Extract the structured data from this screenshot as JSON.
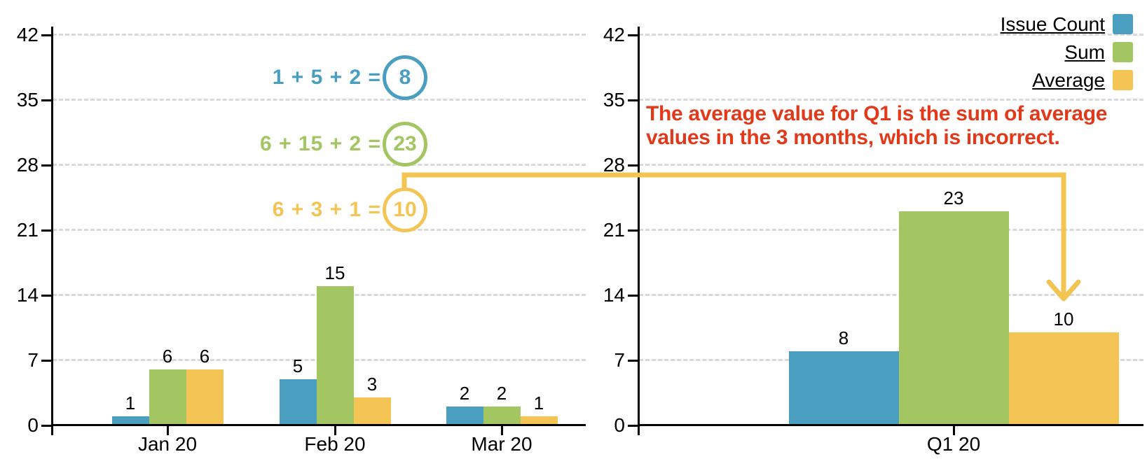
{
  "colors": {
    "issue_count": "#4A9EC0",
    "sum": "#A3C663",
    "average": "#F4C454",
    "arrow": "#F2C452",
    "note": "#E2391B",
    "gridline": "#d9d9d9",
    "axis": "#000000"
  },
  "legend": {
    "items": [
      {
        "label": "Issue Count",
        "color": "#4A9EC0"
      },
      {
        "label": "Sum",
        "color": "#A3C663"
      },
      {
        "label": "Average",
        "color": "#F4C454"
      }
    ]
  },
  "annotations": {
    "equations": [
      {
        "expr": "1 + 5 + 2 =",
        "result": "8",
        "color": "#4A9EC0"
      },
      {
        "expr": "6 + 15 + 2 =",
        "result": "23",
        "color": "#A3C663"
      },
      {
        "expr": "6 + 3 + 1 =",
        "result": "10",
        "color": "#F4C454"
      }
    ],
    "note": {
      "lines": [
        "The average value for Q1 is the sum of average",
        "values in the 3 months, which is incorrect."
      ],
      "color": "#E2391B"
    },
    "arrow_color": "#F2C452"
  },
  "chart_data": [
    {
      "type": "bar",
      "title": "",
      "categories": [
        "Jan 20",
        "Feb 20",
        "Mar 20"
      ],
      "series": [
        {
          "name": "Issue Count",
          "color": "#4A9EC0",
          "values": [
            1,
            5,
            2
          ]
        },
        {
          "name": "Sum",
          "color": "#A3C663",
          "values": [
            6,
            15,
            2
          ]
        },
        {
          "name": "Average",
          "color": "#F4C454",
          "values": [
            6,
            3,
            1
          ]
        }
      ],
      "xlabel": "",
      "ylabel": "",
      "ylim": [
        0,
        42
      ],
      "yticks": [
        0,
        7,
        14,
        21,
        28,
        35,
        42
      ],
      "grid": "horizontal-dashed",
      "legend_position": "none",
      "bar_value_labels": true
    },
    {
      "type": "bar",
      "title": "",
      "categories": [
        "Q1 20"
      ],
      "series": [
        {
          "name": "Issue Count",
          "color": "#4A9EC0",
          "values": [
            8
          ]
        },
        {
          "name": "Sum",
          "color": "#A3C663",
          "values": [
            23
          ]
        },
        {
          "name": "Average",
          "color": "#F4C454",
          "values": [
            10
          ]
        }
      ],
      "xlabel": "",
      "ylabel": "",
      "ylim": [
        0,
        42
      ],
      "yticks": [
        0,
        7,
        14,
        21,
        28,
        35,
        42
      ],
      "grid": "horizontal-dashed",
      "legend_position": "top-right",
      "bar_value_labels": true
    }
  ]
}
